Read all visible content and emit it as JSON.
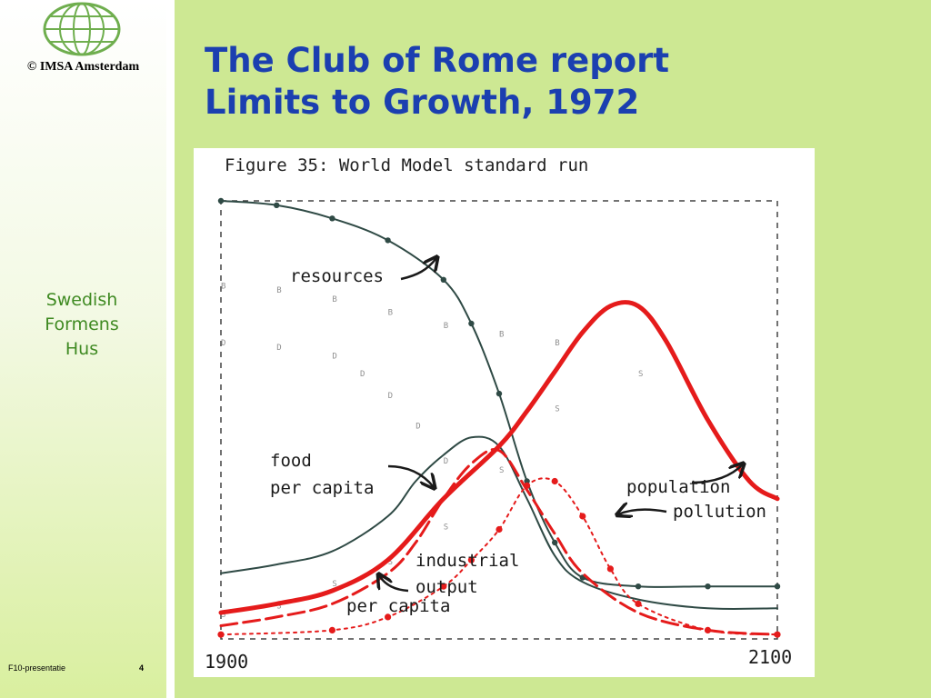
{
  "sidebar": {
    "copyright": "© IMSA Amsterdam",
    "org_lines": [
      "Swedish",
      "Formens",
      "Hus"
    ],
    "footer_label": "F10-presentatie",
    "slide_number": "4",
    "logo_icon": "globe-icon"
  },
  "title_lines": [
    "The Club of Rome report",
    "Limits to Growth, 1972"
  ],
  "colors": {
    "title": "#1b3fb0",
    "org": "#3f8a22",
    "main_bg": "#cde893",
    "red_series": "#e51b1b",
    "dark_series": "#2f4a45",
    "symbol_series": "#909090"
  },
  "chart_data": {
    "type": "line",
    "title": "Figure 35: World Model standard run",
    "xlabel": "",
    "ylabel": "",
    "xlim": [
      1900,
      2100
    ],
    "ylim": [
      0,
      1
    ],
    "x_tick_labels": [
      "1900",
      "2100"
    ],
    "grid": false,
    "legend": "inline labels",
    "annotations": [
      {
        "text": "resources",
        "series": "resources"
      },
      {
        "lines": [
          "food",
          "per capita"
        ],
        "series": "food per capita"
      },
      {
        "lines": [
          "industrial",
          "output",
          "per capita"
        ],
        "series": "industrial output per capita"
      },
      {
        "text": "population",
        "series": "population"
      },
      {
        "text": "pollution",
        "series": "pollution"
      }
    ],
    "series": [
      {
        "name": "resources",
        "style": "dark-dotted",
        "x": [
          1900,
          1920,
          1940,
          1960,
          1980,
          1990,
          2000,
          2010,
          2020,
          2030,
          2050,
          2075,
          2100
        ],
        "y": [
          1.0,
          0.99,
          0.96,
          0.91,
          0.82,
          0.72,
          0.56,
          0.36,
          0.22,
          0.14,
          0.12,
          0.12,
          0.12
        ]
      },
      {
        "name": "food per capita",
        "style": "dark-thin",
        "x": [
          1900,
          1920,
          1940,
          1960,
          1970,
          1980,
          1990,
          2000,
          2010,
          2020,
          2030,
          2050,
          2075,
          2100
        ],
        "y": [
          0.15,
          0.17,
          0.2,
          0.28,
          0.36,
          0.42,
          0.46,
          0.44,
          0.32,
          0.19,
          0.13,
          0.09,
          0.07,
          0.07
        ]
      },
      {
        "name": "industrial output per capita",
        "style": "red-dashed",
        "x": [
          1900,
          1920,
          1940,
          1960,
          1970,
          1980,
          1990,
          2000,
          2010,
          2020,
          2030,
          2050,
          2075,
          2100
        ],
        "y": [
          0.03,
          0.05,
          0.08,
          0.15,
          0.22,
          0.32,
          0.4,
          0.43,
          0.34,
          0.24,
          0.15,
          0.06,
          0.02,
          0.01
        ]
      },
      {
        "name": "population",
        "style": "red-solid",
        "x": [
          1900,
          1920,
          1940,
          1960,
          1980,
          2000,
          2010,
          2020,
          2030,
          2040,
          2050,
          2060,
          2075,
          2090,
          2100
        ],
        "y": [
          0.06,
          0.08,
          0.11,
          0.18,
          0.32,
          0.44,
          0.52,
          0.61,
          0.7,
          0.76,
          0.76,
          0.68,
          0.5,
          0.36,
          0.32
        ]
      },
      {
        "name": "pollution",
        "style": "red-dotted",
        "x": [
          1900,
          1940,
          1960,
          1980,
          1990,
          2000,
          2010,
          2020,
          2030,
          2040,
          2050,
          2075,
          2100
        ],
        "y": [
          0.01,
          0.02,
          0.05,
          0.12,
          0.18,
          0.25,
          0.35,
          0.36,
          0.28,
          0.16,
          0.08,
          0.02,
          0.01
        ]
      },
      {
        "name": "",
        "style": "faint-symbols-B",
        "x": [
          1900,
          1920,
          1940,
          1960,
          1980,
          2000,
          2020
        ],
        "y": [
          0.8,
          0.79,
          0.77,
          0.74,
          0.71,
          0.69,
          0.67
        ]
      },
      {
        "name": "",
        "style": "faint-symbols-D",
        "x": [
          1900,
          1920,
          1940,
          1950,
          1960,
          1970,
          1980
        ],
        "y": [
          0.67,
          0.66,
          0.64,
          0.6,
          0.55,
          0.48,
          0.4
        ]
      },
      {
        "name": "",
        "style": "faint-symbols-S",
        "x": [
          1900,
          1920,
          1940,
          1960,
          1980,
          2000,
          2020,
          2050
        ],
        "y": [
          0.05,
          0.07,
          0.12,
          0.17,
          0.25,
          0.38,
          0.52,
          0.6
        ]
      }
    ]
  }
}
